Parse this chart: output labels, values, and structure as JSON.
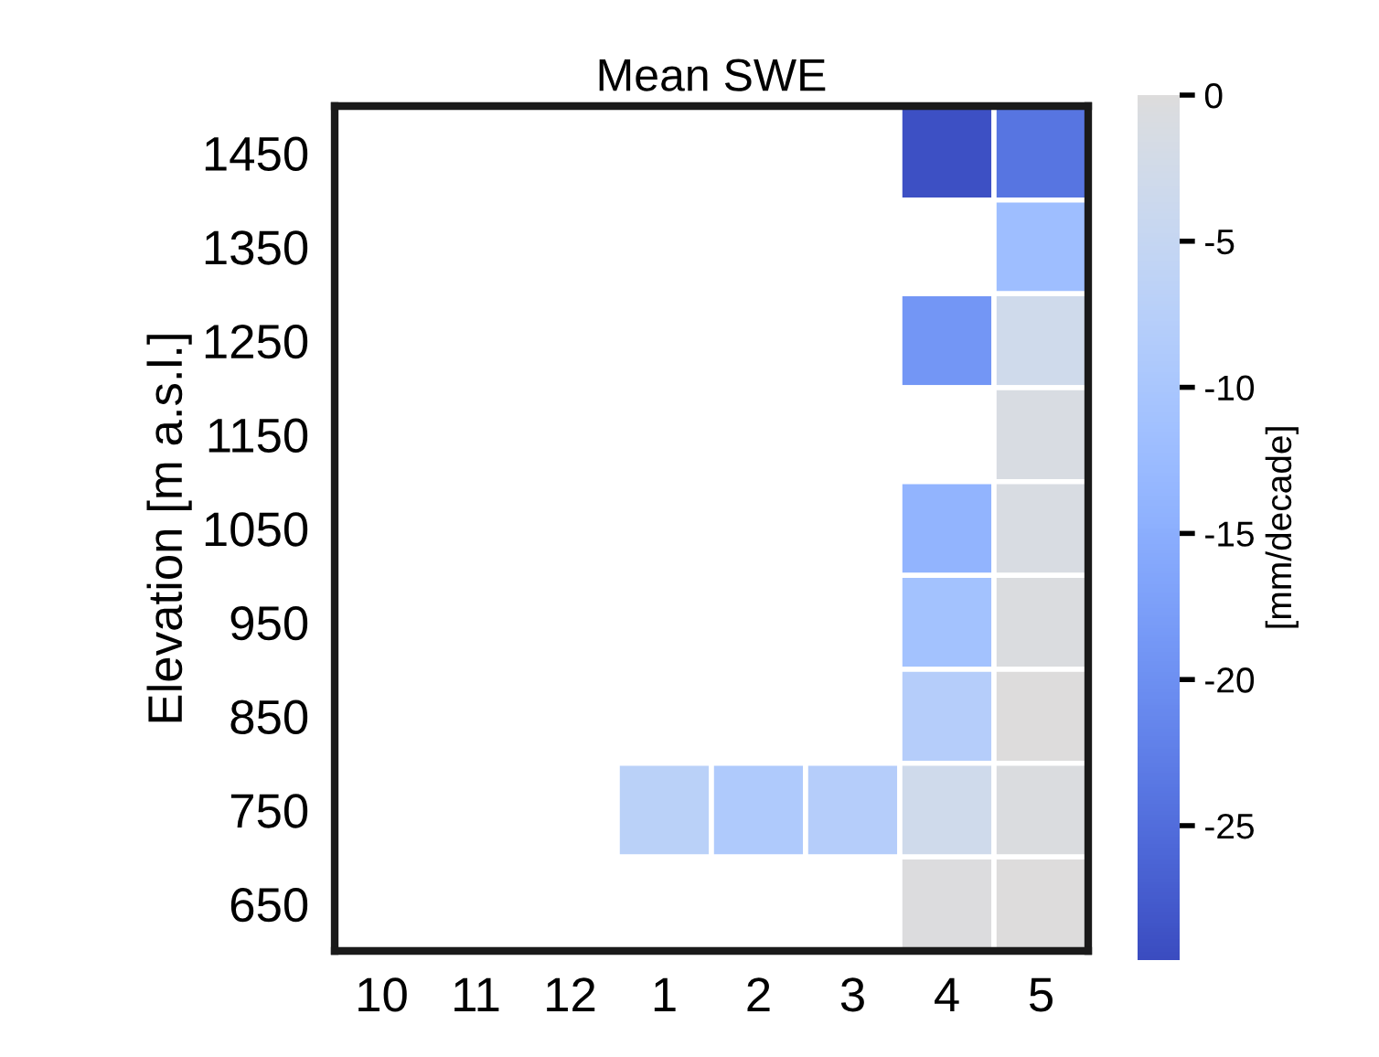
{
  "chart_data": {
    "type": "heatmap",
    "title": "Mean SWE",
    "ylabel": "Elevation [m a.s.l.]",
    "clabel": "[mm/decade]",
    "categories": [
      "10",
      "11",
      "12",
      "1",
      "2",
      "3",
      "4",
      "5"
    ],
    "y_categories": [
      "1450",
      "1350",
      "1250",
      "1150",
      "1050",
      "950",
      "850",
      "750",
      "650"
    ],
    "cells": [
      [
        null,
        null,
        null,
        null,
        null,
        null,
        -29,
        -24
      ],
      [
        null,
        null,
        null,
        null,
        null,
        null,
        null,
        -12
      ],
      [
        null,
        null,
        null,
        null,
        null,
        null,
        -19,
        -3
      ],
      [
        null,
        null,
        null,
        null,
        null,
        null,
        null,
        -1
      ],
      [
        null,
        null,
        null,
        null,
        null,
        null,
        -14,
        -1
      ],
      [
        null,
        null,
        null,
        null,
        null,
        null,
        -11,
        -0.5
      ],
      [
        null,
        null,
        null,
        null,
        null,
        null,
        -8,
        0
      ],
      [
        null,
        null,
        null,
        -7,
        -9,
        -8,
        -3,
        -0.5
      ],
      [
        null,
        null,
        null,
        null,
        null,
        null,
        -0.3,
        0
      ]
    ],
    "clim": [
      -29.6,
      0
    ],
    "cticks": [
      0,
      -5,
      -10,
      -15,
      -20,
      -25
    ]
  }
}
